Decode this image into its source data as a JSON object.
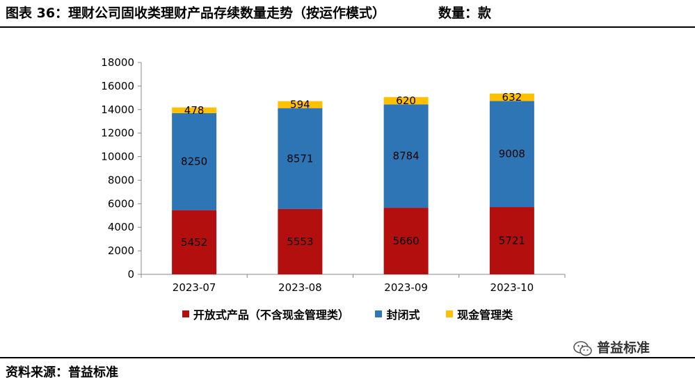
{
  "header": {
    "title": "图表 36：理财公司固收类理财产品存续数量走势（按运作模式）",
    "unit": "数量：款"
  },
  "footer": {
    "source": "资料来源：普益标准"
  },
  "watermark": {
    "text": "普益标准",
    "icon": "wechat-icon"
  },
  "colors": {
    "open": "#b40f0f",
    "closed": "#2e75b6",
    "cash": "#ffc000"
  },
  "chart_data": {
    "type": "bar",
    "stacked": true,
    "title": "",
    "xlabel": "",
    "ylabel": "",
    "categories": [
      "2023-07",
      "2023-08",
      "2023-09",
      "2023-10"
    ],
    "ylim": [
      0,
      18000
    ],
    "yticks": [
      0,
      2000,
      4000,
      6000,
      8000,
      10000,
      12000,
      14000,
      16000,
      18000
    ],
    "grid": false,
    "legend_position": "bottom",
    "series": [
      {
        "name": "开放式产品（不含现金管理类）",
        "key": "open",
        "values": [
          5452,
          5553,
          5660,
          5721
        ]
      },
      {
        "name": "封闭式",
        "key": "closed",
        "values": [
          8250,
          8571,
          8784,
          9008
        ]
      },
      {
        "name": "现金管理类",
        "key": "cash",
        "values": [
          478,
          594,
          620,
          632
        ]
      }
    ]
  }
}
